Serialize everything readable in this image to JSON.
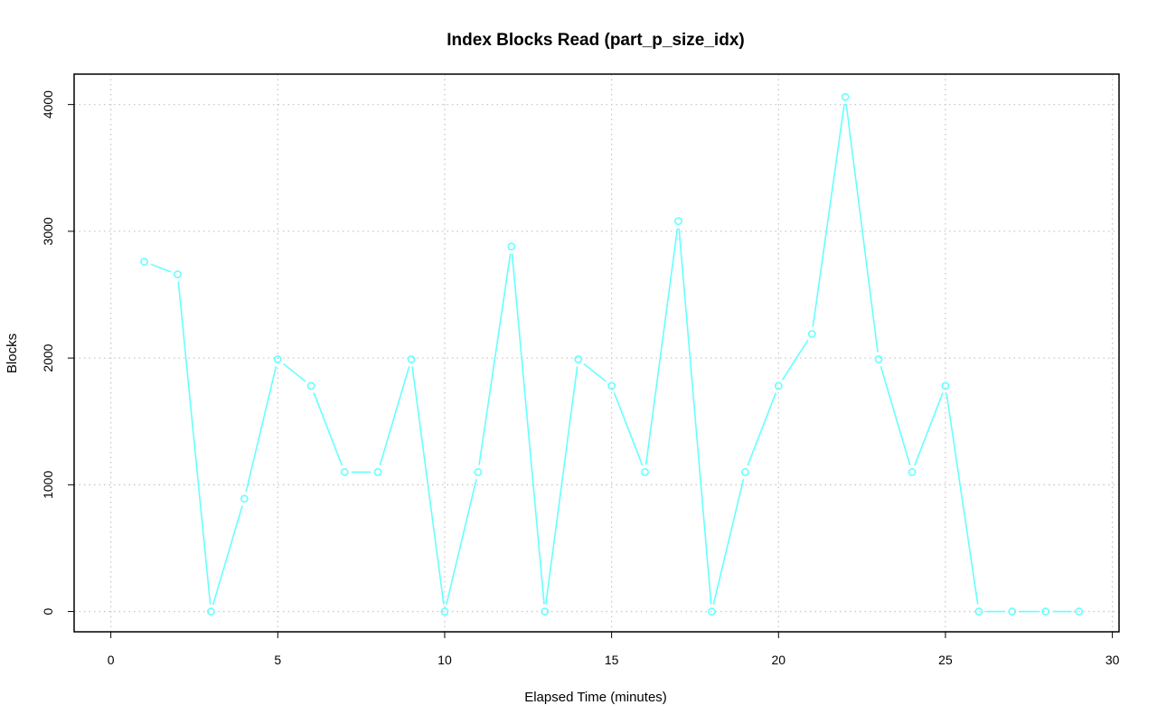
{
  "chart_data": {
    "type": "line",
    "title": "Index Blocks Read (part_p_size_idx)",
    "xlabel": "Elapsed Time (minutes)",
    "ylabel": "Blocks",
    "xlim": [
      -1.1,
      30.2
    ],
    "ylim": [
      -160,
      4240
    ],
    "xticks": [
      0,
      5,
      10,
      15,
      20,
      25,
      30
    ],
    "yticks": [
      0,
      1000,
      2000,
      3000,
      4000
    ],
    "grid": true,
    "legend": "none",
    "series": [
      {
        "color": "#66ffff",
        "marker": "open-circle",
        "x": [
          1,
          2,
          3,
          4,
          5,
          6,
          7,
          8,
          9,
          10,
          11,
          12,
          13,
          14,
          15,
          16,
          17,
          18,
          19,
          20,
          21,
          22,
          23,
          24,
          25,
          26,
          27,
          28,
          29
        ],
        "values": [
          2760,
          2660,
          0,
          890,
          1990,
          1780,
          1100,
          1100,
          1990,
          0,
          1100,
          2880,
          0,
          1990,
          1780,
          1100,
          3080,
          0,
          1100,
          1780,
          2190,
          4060,
          1990,
          1100,
          1780,
          0,
          0,
          0,
          0
        ]
      }
    ]
  }
}
